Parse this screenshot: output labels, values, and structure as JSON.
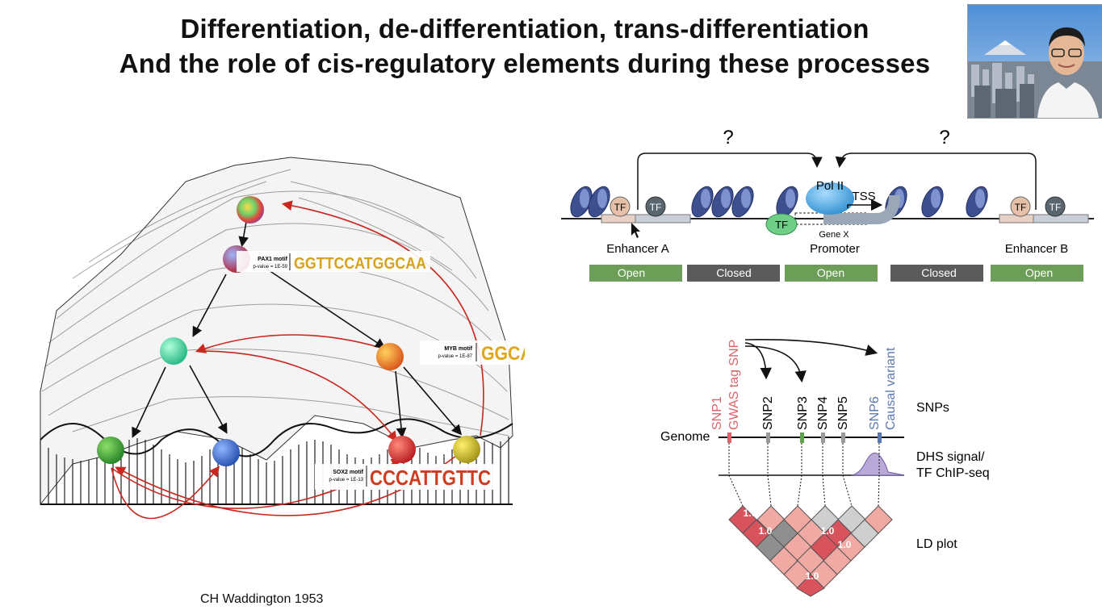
{
  "title": {
    "line1": "Differentiation, de-differentiation, trans-differentiation",
    "line2": "And the role of cis-regulatory elements during these processes"
  },
  "caption": "CH Waddington 1953",
  "landscape": {
    "motifs": [
      {
        "label": "PAX1 motif",
        "pvalue": "p-value = 1E-59",
        "sequence": "GGTTCCATGGCAA"
      },
      {
        "label": "MYB motif",
        "pvalue": "p-value = 1E-87",
        "sequence": "GGCAGTTA"
      },
      {
        "label": "SOX2 motif",
        "pvalue": "p-value = 1E-13",
        "sequence": "CCCATTGTTC"
      }
    ]
  },
  "regulation": {
    "question_left": "?",
    "question_right": "?",
    "pol2": "Pol II",
    "tss": "TSS",
    "gene": "Gene X",
    "tf": "TF",
    "enhancer_a": "Enhancer A",
    "promoter": "Promoter",
    "enhancer_b": "Enhancer B",
    "states": [
      "Open",
      "Closed",
      "Open",
      "Closed",
      "Open"
    ],
    "colors": {
      "open": "#6c9e58",
      "closed": "#5b5b5b"
    }
  },
  "snp": {
    "tag_label": "GWAS tag SNP",
    "causal_label": "Causal variant",
    "snps": [
      "SNP1",
      "SNP2",
      "SNP3",
      "SNP4",
      "SNP5",
      "SNP6"
    ],
    "row_labels": {
      "snps": "SNPs",
      "dhs": "DHS signal/",
      "chip": "TF ChIP-seq",
      "ld": "LD plot"
    },
    "genome": "Genome",
    "ld_values": [
      "1.0",
      "1.0",
      "1.0",
      "1.0",
      "1.0"
    ],
    "colors": {
      "tag": "#d9646a",
      "causal": "#5a78b0",
      "ld_strong": "#d9535c",
      "ld_weak": "#f0a9a3",
      "ld_gray": "#cfcfcf"
    }
  }
}
